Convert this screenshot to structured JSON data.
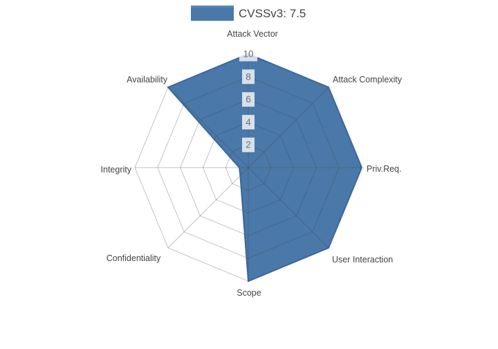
{
  "legend": {
    "label": "CVSSv3: 7.5"
  },
  "chart_data": {
    "type": "radar",
    "title": "",
    "categories": [
      "Attack Vector",
      "Attack Complexity",
      "Priv.Req.",
      "User Interaction",
      "Scope",
      "Confidentiality",
      "Integrity",
      "Availability"
    ],
    "series": [
      {
        "name": "CVSSv3: 7.5",
        "values": [
          10,
          10,
          10,
          10,
          10,
          1,
          0.8,
          10
        ]
      }
    ],
    "radial_ticks": [
      2,
      4,
      6,
      8,
      10
    ],
    "rlim": [
      0,
      10
    ],
    "start_angle_deg": 90,
    "direction": "clockwise",
    "grid": true,
    "legend_position": "top-center",
    "colors": {
      "fill": "#4a78a8",
      "line": "#39679f",
      "legend_line": "#5488c0",
      "grid": "rgba(68,68,68,0.32)",
      "tick_text": "#6f6f6f",
      "tick_box": "rgba(255,255,255,0.78)",
      "label_text": "#444444"
    }
  }
}
